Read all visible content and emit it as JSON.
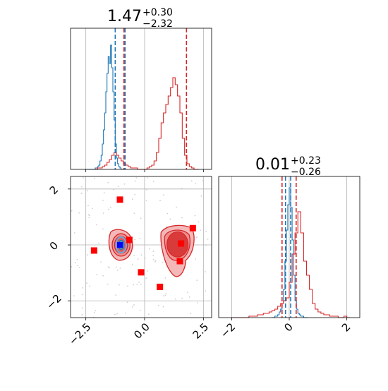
{
  "chart_data": {
    "type": "corner",
    "colors": {
      "blue": "#1f77b4",
      "red": "#d62728",
      "marker_red": "#ff0000",
      "marker_blue": "#0000ff",
      "grid": "#b0b0b0"
    },
    "panels": [
      {
        "id": "hist-x",
        "type": "histogram",
        "title_base": "1.47",
        "title_plus": "+0.30",
        "title_minus": "−2.32",
        "xlim": [
          -3.15,
          2.85
        ],
        "grid_x": [
          -2.5,
          0.0,
          2.5
        ],
        "series": [
          {
            "name": "blue",
            "color": "blue",
            "bin_start": -2.55,
            "bin_width": 0.05,
            "values": [
              0,
              0,
              0,
              0,
              0,
              0,
              0,
              0,
              0,
              1,
              1,
              2,
              3,
              6,
              10,
              18,
              28,
              40,
              55,
              68,
              80,
              75,
              88,
              72,
              55,
              35,
              18,
              8,
              4,
              2,
              1,
              0,
              0,
              0,
              0
            ],
            "dashed": [
              -1.25,
              -0.83
            ]
          },
          {
            "name": "red",
            "color": "red",
            "bin_start": -2.2,
            "bin_width": 0.1,
            "values": [
              0,
              0,
              1,
              1,
              2,
              3,
              5,
              7,
              10,
              12,
              10,
              8,
              6,
              4,
              3,
              2,
              1,
              1,
              1,
              0,
              0,
              0,
              0,
              1,
              2,
              3,
              6,
              12,
              22,
              33,
              40,
              46,
              52,
              58,
              65,
              60,
              52,
              40,
              22,
              10,
              4,
              2,
              1,
              0,
              0
            ],
            "dashed": [
              -0.88,
              1.78
            ]
          }
        ],
        "ymax": 100
      },
      {
        "id": "scatter",
        "type": "contour",
        "xlim": [
          -3.15,
          2.85
        ],
        "ylim": [
          -2.6,
          2.45
        ],
        "x_ticks": [
          "−2.5",
          "0.0",
          "2.5"
        ],
        "x_tick_values": [
          -2.5,
          0.0,
          2.5
        ],
        "y_ticks": [
          "2",
          "0",
          "−2"
        ],
        "y_tick_values": [
          2,
          0,
          -2
        ],
        "red_squares": [
          [
            -1.05,
            1.62
          ],
          [
            -2.15,
            -0.2
          ],
          [
            -0.65,
            0.18
          ],
          [
            -0.15,
            -0.98
          ],
          [
            0.65,
            -1.5
          ],
          [
            2.05,
            0.6
          ],
          [
            1.5,
            -0.58
          ],
          [
            1.55,
            0.05
          ]
        ],
        "blue_square": [
          -1.05,
          0.0
        ]
      },
      {
        "id": "hist-y",
        "type": "histogram",
        "title_base": "0.01",
        "title_plus": "+0.23",
        "title_minus": "−0.26",
        "xlim": [
          -2.45,
          2.45
        ],
        "x_ticks": [
          "−2",
          "0",
          "2"
        ],
        "x_tick_values": [
          -2,
          0,
          2
        ],
        "grid_x": [
          -2,
          0,
          2
        ],
        "series": [
          {
            "name": "blue",
            "color": "blue",
            "bin_start": -0.6,
            "bin_width": 0.05,
            "values": [
              0,
              0,
              1,
              1,
              2,
              4,
              6,
              10,
              20,
              40,
              62,
              80,
              92,
              78,
              55,
              30,
              12,
              6,
              3,
              2,
              1,
              1,
              0,
              0,
              0
            ],
            "dashed": [
              -0.13,
              0.05
            ]
          },
          {
            "name": "red",
            "color": "red",
            "bin_start": -2.0,
            "bin_width": 0.1,
            "values": [
              0,
              0,
              0,
              0,
              0,
              0,
              1,
              1,
              1,
              2,
              2,
              3,
              3,
              4,
              5,
              6,
              8,
              10,
              12,
              14,
              25,
              45,
              60,
              75,
              60,
              40,
              30,
              20,
              10,
              6,
              4,
              3,
              2,
              2,
              1,
              1,
              1,
              0,
              0,
              1,
              0
            ],
            "dashed": [
              -0.25,
              0.24
            ]
          }
        ],
        "ymax": 100
      }
    ]
  }
}
